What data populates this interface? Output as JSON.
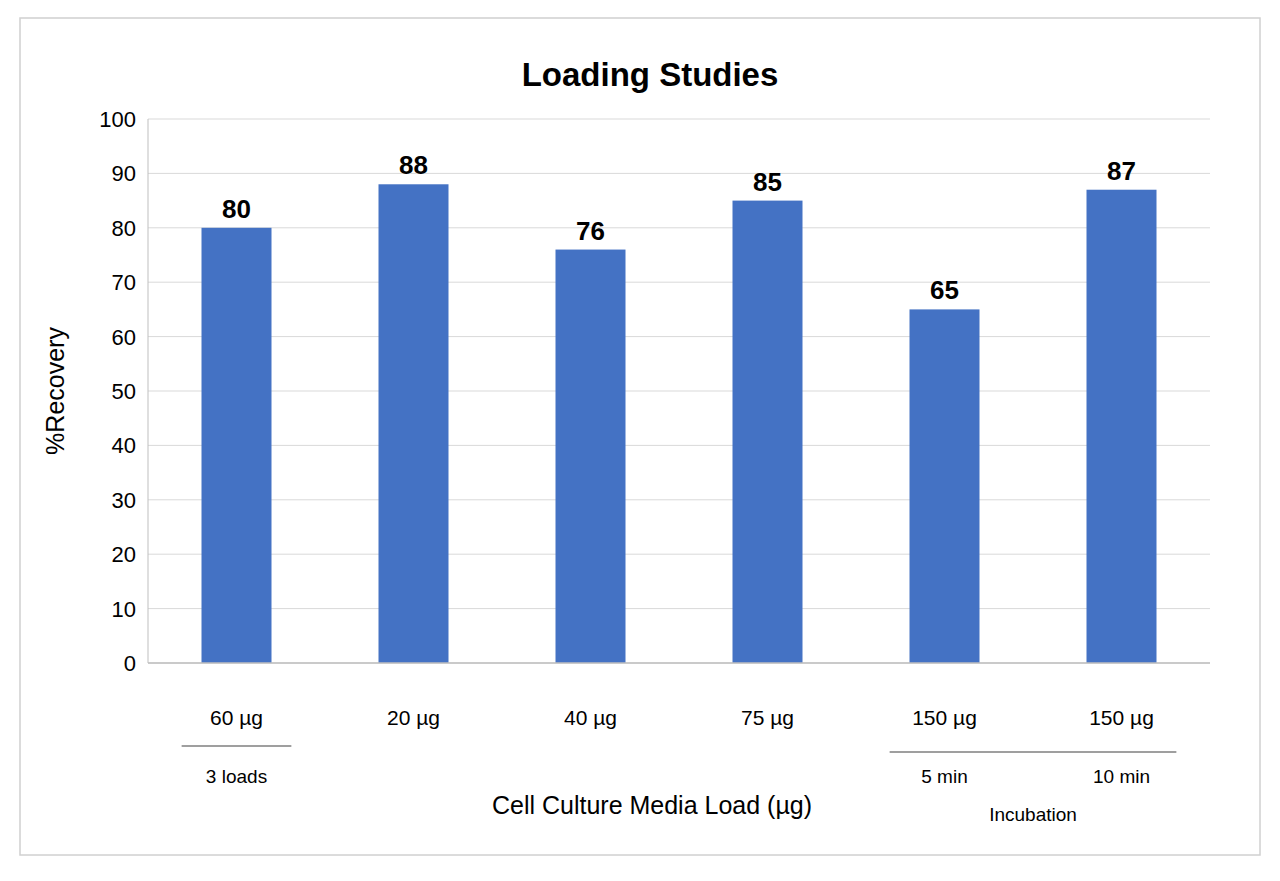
{
  "chart_data": {
    "type": "bar",
    "title": "Loading Studies",
    "categories": [
      "60 µg",
      "20 µg",
      "40 µg",
      "75 µg",
      "150 µg",
      "150 µg"
    ],
    "sublabels": [
      "3 loads",
      null,
      null,
      null,
      "5 min",
      "10 min"
    ],
    "groups": [
      {
        "start": 0,
        "end": 0
      },
      {
        "start": 4,
        "end": 5,
        "label": "Incubation"
      }
    ],
    "values": [
      80,
      88,
      76,
      85,
      65,
      87
    ],
    "color": "#4472c4",
    "x_label": "Cell Culture Media Load (µg)",
    "y_label": "%Recovery",
    "ylim": [
      0,
      100
    ],
    "yticks": [
      0,
      10,
      20,
      30,
      40,
      50,
      60,
      70,
      80,
      90,
      100
    ],
    "grid": true,
    "data_labels": true
  }
}
